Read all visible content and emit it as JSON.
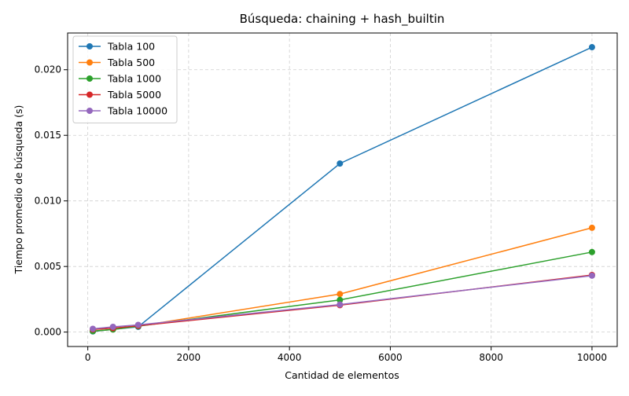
{
  "chart_data": {
    "type": "line",
    "title": "Búsqueda: chaining + hash_builtin",
    "xlabel": "Cantidad de elementos",
    "ylabel": "Tiempo promedio de búsqueda (s)",
    "x": [
      100,
      500,
      1000,
      5000,
      10000
    ],
    "xlim": [
      -400,
      10500
    ],
    "ylim": [
      -0.0011,
      0.0228
    ],
    "xticks": [
      0,
      2000,
      4000,
      6000,
      8000,
      10000
    ],
    "xtick_labels": [
      "0",
      "2000",
      "4000",
      "6000",
      "8000",
      "10000"
    ],
    "yticks": [
      0.0,
      0.005,
      0.01,
      0.015,
      0.02
    ],
    "ytick_labels": [
      "0.000",
      "0.005",
      "0.010",
      "0.015",
      "0.020"
    ],
    "grid": true,
    "legend_position": "top-left",
    "series": [
      {
        "name": "Tabla 100",
        "color": "#1f77b4",
        "values": [
          5e-05,
          0.0002,
          0.0004,
          0.01285,
          0.02172
        ]
      },
      {
        "name": "Tabla 500",
        "color": "#ff7f0e",
        "values": [
          8e-05,
          0.0002,
          0.00045,
          0.0029,
          0.00795
        ]
      },
      {
        "name": "Tabla 1000",
        "color": "#2ca02c",
        "values": [
          7e-05,
          0.0002,
          0.00045,
          0.00245,
          0.0061
        ]
      },
      {
        "name": "Tabla 5000",
        "color": "#d62728",
        "values": [
          0.0002,
          0.0003,
          0.00048,
          0.00205,
          0.00435
        ]
      },
      {
        "name": "Tabla 10000",
        "color": "#9467bd",
        "values": [
          0.00025,
          0.0004,
          0.00055,
          0.0021,
          0.0043
        ]
      }
    ]
  }
}
